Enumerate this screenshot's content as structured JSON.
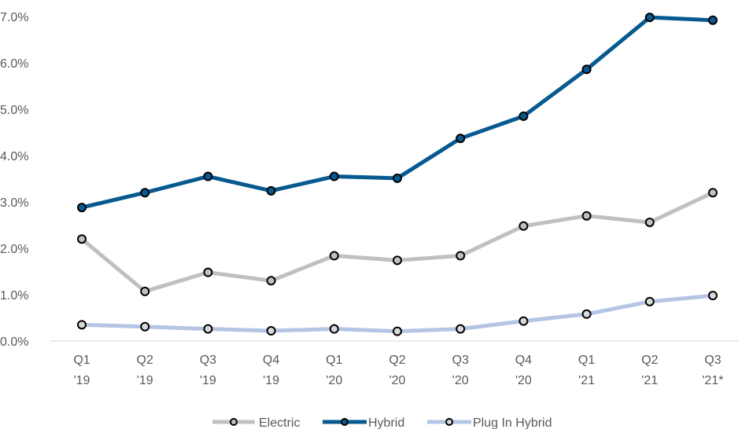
{
  "chart_data": {
    "type": "line",
    "title": "",
    "xlabel": "",
    "ylabel": "",
    "categories": [
      [
        "Q1",
        "'19"
      ],
      [
        "Q2",
        "'19"
      ],
      [
        "Q3",
        "'19"
      ],
      [
        "Q4",
        "'19"
      ],
      [
        "Q1",
        "'20"
      ],
      [
        "Q2",
        "'20"
      ],
      [
        "Q3",
        "'20"
      ],
      [
        "Q4",
        "'20"
      ],
      [
        "Q1",
        "'21"
      ],
      [
        "Q2",
        "'21"
      ],
      [
        "Q3",
        "'21*"
      ]
    ],
    "ylim": [
      0,
      7
    ],
    "yticks": [
      "0.0%",
      "1.0%",
      "2.0%",
      "3.0%",
      "4.0%",
      "5.0%",
      "6.0%",
      "7.0%"
    ],
    "grid": false,
    "legend_position": "bottom",
    "series": [
      {
        "name": "Electric",
        "color": "#c0c0c0",
        "marker_fill": "#c0c0c0",
        "values": [
          2.2,
          1.07,
          1.48,
          1.3,
          1.84,
          1.74,
          1.84,
          2.48,
          2.7,
          2.56,
          3.2
        ]
      },
      {
        "name": "Hybrid",
        "color": "#075a90",
        "marker_fill": "#075a90",
        "values": [
          2.88,
          3.2,
          3.55,
          3.24,
          3.55,
          3.51,
          4.37,
          4.85,
          5.86,
          6.98,
          6.92
        ]
      },
      {
        "name": "Plug In Hybrid",
        "color": "#b4c5e4",
        "marker_fill": "#d9d9d9",
        "values": [
          0.35,
          0.31,
          0.26,
          0.22,
          0.26,
          0.21,
          0.26,
          0.43,
          0.58,
          0.85,
          0.98
        ]
      }
    ]
  }
}
